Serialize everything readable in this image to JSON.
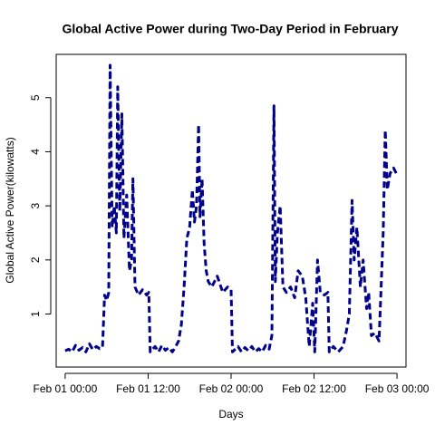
{
  "chart_data": {
    "type": "line",
    "title": "Global Active Power during Two-Day Period in February",
    "x_label": "Days",
    "y_label": "Global Active Power(kilowatts)",
    "x": [
      0,
      0.5,
      1,
      1.5,
      2,
      2.5,
      3,
      3.5,
      4,
      4.5,
      5,
      5.4,
      5.7,
      6,
      6.3,
      6.5,
      6.8,
      7.1,
      7.4,
      7.6,
      7.9,
      8.2,
      8.5,
      8.9,
      9.3,
      9.6,
      9.8,
      10.1,
      10.6,
      11.2,
      11.8,
      12.1,
      12.3,
      13,
      13.5,
      14,
      14.5,
      15,
      15.5,
      16,
      16.4,
      16.8,
      17.2,
      17.6,
      18,
      18.4,
      18.7,
      19,
      19.3,
      19.5,
      19.8,
      20.1,
      20.4,
      20.7,
      21.2,
      22,
      22.8,
      23.5,
      24,
      24.2,
      25,
      25.5,
      26,
      26.5,
      27,
      27.5,
      28,
      28.5,
      29,
      29.5,
      29.9,
      30.2,
      30.4,
      30.7,
      31.1,
      31.5,
      32,
      32.6,
      33.2,
      33.7,
      34.3,
      34.8,
      35.3,
      35.8,
      36.1,
      36.5,
      36.9,
      37.5,
      38,
      38.2,
      38.8,
      39.5,
      40.2,
      40.7,
      41.1,
      41.5,
      41.8,
      42.2,
      42.7,
      43.1,
      43.6,
      43.9,
      44.3,
      44.8,
      45.4,
      45.7,
      46,
      46.3,
      46.6,
      47,
      47.5,
      47.9
    ],
    "series": [
      {
        "color": "#00008b",
        "values": [
          0.32,
          0.35,
          0.3,
          0.42,
          0.33,
          0.38,
          0.3,
          0.45,
          0.34,
          0.4,
          0.36,
          0.38,
          1.35,
          1.25,
          1.4,
          5.6,
          2.6,
          3.0,
          2.5,
          5.2,
          2.9,
          4.7,
          2.4,
          3.2,
          1.8,
          2.0,
          3.5,
          1.5,
          1.35,
          1.45,
          1.35,
          1.4,
          0.3,
          0.4,
          0.3,
          0.42,
          0.33,
          0.38,
          0.3,
          0.4,
          0.5,
          0.8,
          1.5,
          2.4,
          2.6,
          3.3,
          2.7,
          3.0,
          4.5,
          2.8,
          3.5,
          2.3,
          1.8,
          1.6,
          1.5,
          1.7,
          1.4,
          1.5,
          1.45,
          0.3,
          0.4,
          0.3,
          0.38,
          0.32,
          0.4,
          0.3,
          0.36,
          0.3,
          0.42,
          0.35,
          0.6,
          4.85,
          1.6,
          2.5,
          3.0,
          1.5,
          1.4,
          1.5,
          1.3,
          1.8,
          1.7,
          1.3,
          0.4,
          1.2,
          0.3,
          2.0,
          1.4,
          1.35,
          1.4,
          0.3,
          0.4,
          0.3,
          0.4,
          0.7,
          1.0,
          3.1,
          2.0,
          2.6,
          1.5,
          2.0,
          1.1,
          1.4,
          0.6,
          0.65,
          0.5,
          1.5,
          2.5,
          4.4,
          3.3,
          3.6,
          3.7,
          3.6
        ]
      }
    ],
    "xlim": [
      -1.3,
      49.3
    ],
    "xticks": [
      {
        "value": 0,
        "label": "Feb 01 00:00"
      },
      {
        "value": 12,
        "label": "Feb 01 12:00"
      },
      {
        "value": 24,
        "label": "Feb 02 00:00"
      },
      {
        "value": 36,
        "label": "Feb 02 12:00"
      },
      {
        "value": 48,
        "label": "Feb 03 00:00"
      }
    ],
    "ylim": [
      0.02,
      5.8
    ],
    "yticks": [
      1,
      2,
      3,
      4,
      5
    ],
    "grid": false
  }
}
